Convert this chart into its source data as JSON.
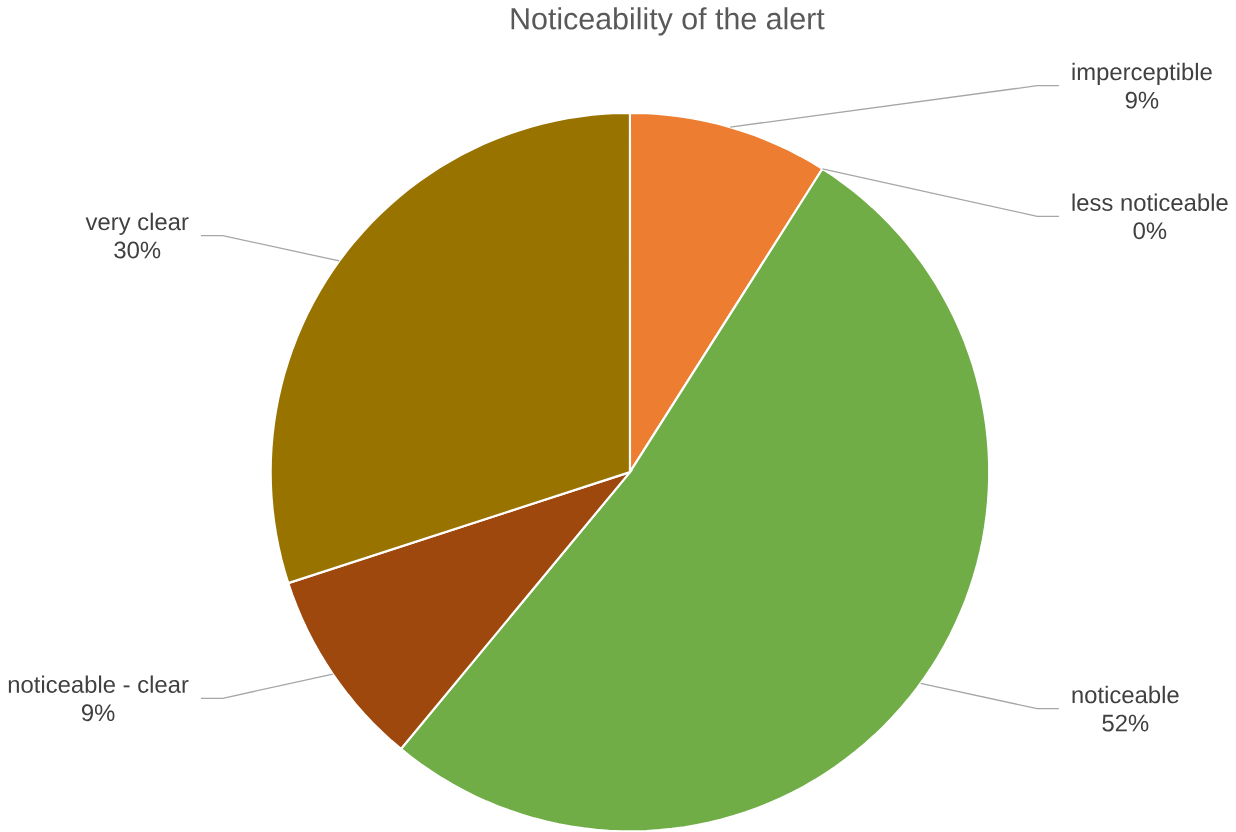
{
  "chart_data": {
    "type": "pie",
    "title": "Noticeability of the alert",
    "categories": [
      "imperceptible",
      "less noticeable",
      "noticeable",
      "noticeable - clear",
      "very clear"
    ],
    "values": [
      9,
      0,
      52,
      9,
      30
    ],
    "colors": [
      "#ed7d31",
      "#a5a5a5",
      "#70ad47",
      "#9e480e",
      "#997300"
    ],
    "value_labels": [
      "9%",
      "0%",
      "52%",
      "9%",
      "30%"
    ]
  }
}
